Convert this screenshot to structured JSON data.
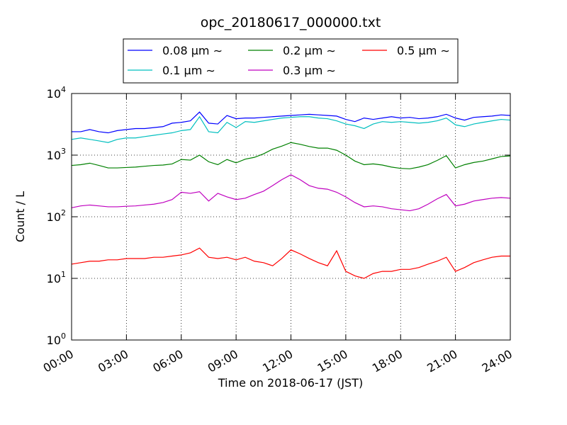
{
  "chart_data": {
    "type": "line",
    "title": "opc_20180617_000000.txt",
    "x_label": "Time on 2018-06-17 (JST)",
    "y_label": "Count / L",
    "yscale": "log",
    "grid": true,
    "legend": "upper center",
    "xlim": [
      0,
      24
    ],
    "ylim": [
      1,
      10000
    ],
    "xticks": [
      {
        "value": 0,
        "label": "00:00"
      },
      {
        "value": 3,
        "label": "03:00"
      },
      {
        "value": 6,
        "label": "06:00"
      },
      {
        "value": 9,
        "label": "09:00"
      },
      {
        "value": 12,
        "label": "12:00"
      },
      {
        "value": 15,
        "label": "15:00"
      },
      {
        "value": 18,
        "label": "18:00"
      },
      {
        "value": 21,
        "label": "21:00"
      },
      {
        "value": 24,
        "label": "24:00"
      }
    ],
    "yticks": [
      {
        "value": 1,
        "label": "10^0"
      },
      {
        "value": 10,
        "label": "10^1"
      },
      {
        "value": 100,
        "label": "10^2"
      },
      {
        "value": 1000,
        "label": "10^3"
      },
      {
        "value": 10000,
        "label": "10^4"
      }
    ],
    "x": [
      0,
      0.5,
      1,
      1.5,
      2,
      2.5,
      3,
      3.5,
      4,
      4.5,
      5,
      5.5,
      6,
      6.5,
      7,
      7.5,
      8,
      8.5,
      9,
      9.5,
      10,
      10.5,
      11,
      11.5,
      12,
      12.5,
      13,
      13.5,
      14,
      14.5,
      15,
      15.5,
      16,
      16.5,
      17,
      17.5,
      18,
      18.5,
      19,
      19.5,
      20,
      20.5,
      21,
      21.5,
      22,
      22.5,
      23,
      23.5,
      24
    ],
    "series": [
      {
        "name": "0.08 μm ∼",
        "color": "#0000ff",
        "values": [
          2400,
          2400,
          2600,
          2400,
          2300,
          2500,
          2600,
          2700,
          2700,
          2800,
          2900,
          3300,
          3400,
          3600,
          5000,
          3300,
          3200,
          4400,
          3900,
          4000,
          4000,
          4100,
          4200,
          4300,
          4400,
          4500,
          4600,
          4500,
          4400,
          4300,
          3800,
          3500,
          4000,
          3800,
          4000,
          4200,
          4000,
          4100,
          3900,
          4000,
          4200,
          4600,
          4000,
          3700,
          4100,
          4200,
          4300,
          4500,
          4400
        ]
      },
      {
        "name": "0.1 μm ∼",
        "color": "#00bfbf",
        "values": [
          1800,
          1900,
          1800,
          1700,
          1600,
          1800,
          1900,
          1900,
          2000,
          2100,
          2200,
          2300,
          2500,
          2600,
          4200,
          2400,
          2300,
          3400,
          2800,
          3500,
          3400,
          3600,
          3800,
          4000,
          4100,
          4200,
          4200,
          4000,
          3900,
          3600,
          3200,
          3000,
          2700,
          3200,
          3500,
          3400,
          3500,
          3400,
          3300,
          3400,
          3600,
          4000,
          3100,
          2900,
          3200,
          3400,
          3600,
          3800,
          3700
        ]
      },
      {
        "name": "0.2 μm ∼",
        "color": "#008000",
        "values": [
          680,
          700,
          740,
          680,
          620,
          620,
          630,
          640,
          660,
          680,
          690,
          720,
          850,
          830,
          1000,
          780,
          700,
          850,
          750,
          860,
          920,
          1050,
          1250,
          1400,
          1600,
          1500,
          1380,
          1300,
          1300,
          1200,
          1000,
          800,
          700,
          720,
          690,
          640,
          610,
          600,
          640,
          700,
          820,
          980,
          620,
          700,
          760,
          800,
          870,
          950,
          970
        ]
      },
      {
        "name": "0.3 μm ∼",
        "color": "#bf00bf",
        "values": [
          140,
          150,
          155,
          150,
          145,
          145,
          148,
          150,
          155,
          160,
          170,
          190,
          250,
          240,
          255,
          180,
          240,
          210,
          190,
          200,
          230,
          260,
          320,
          400,
          480,
          400,
          320,
          290,
          280,
          250,
          210,
          170,
          145,
          150,
          145,
          135,
          130,
          125,
          135,
          160,
          195,
          230,
          150,
          160,
          180,
          190,
          200,
          205,
          200
        ]
      },
      {
        "name": "0.5 μm ∼",
        "color": "#ff0000",
        "values": [
          17,
          18,
          19,
          19,
          20,
          20,
          21,
          21,
          21,
          22,
          22,
          23,
          24,
          26,
          31,
          22,
          21,
          22,
          20,
          22,
          19,
          18,
          16,
          21,
          29,
          25,
          21,
          18,
          16,
          28,
          13,
          11,
          10,
          12,
          13,
          13,
          14,
          14,
          15,
          17,
          19,
          22,
          13,
          15,
          18,
          20,
          22,
          23,
          23
        ]
      }
    ]
  }
}
